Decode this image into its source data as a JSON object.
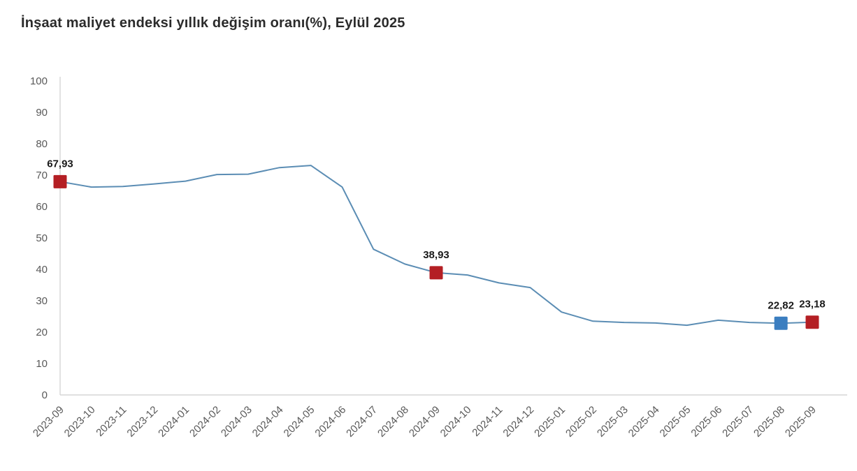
{
  "title": "İnşaat maliyet endeksi yıllık değişim oranı(%), Eylül 2025",
  "colors": {
    "title_text": "#2b2b2b",
    "axis_line": "#d6d6d6",
    "tick_text": "#595959",
    "series_line": "#5b8db4",
    "marker_red": "#b41f24",
    "marker_blue": "#3b7ec0",
    "data_label_text": "#1a1a1a"
  },
  "chart_data": {
    "type": "line",
    "title": "İnşaat maliyet endeksi yıllık değişim oranı(%), Eylül 2025",
    "xlabel": "",
    "ylabel": "",
    "ylim": [
      0,
      100
    ],
    "yticks": [
      0,
      10,
      20,
      30,
      40,
      50,
      60,
      70,
      80,
      90,
      100
    ],
    "grid": false,
    "legend": "none",
    "decimal_separator": ",",
    "x": [
      "2023-09",
      "2023-10",
      "2023-11",
      "2023-12",
      "2024-01",
      "2024-02",
      "2024-03",
      "2024-04",
      "2024-05",
      "2024-06",
      "2024-07",
      "2024-08",
      "2024-09",
      "2024-10",
      "2024-11",
      "2024-12",
      "2025-01",
      "2025-02",
      "2025-03",
      "2025-04",
      "2025-05",
      "2025-06",
      "2025-07",
      "2025-08",
      "2025-09"
    ],
    "values": [
      67.93,
      66.2,
      66.4,
      67.2,
      68.1,
      70.2,
      70.3,
      72.4,
      73.1,
      66.2,
      46.4,
      41.7,
      38.93,
      38.2,
      35.7,
      34.2,
      26.4,
      23.5,
      23.1,
      22.9,
      22.2,
      23.8,
      23.1,
      22.82,
      23.18
    ],
    "annotations": [
      {
        "x": "2023-09",
        "value": 67.93,
        "label": "67,93",
        "marker": "square",
        "marker_color": "#b41f24"
      },
      {
        "x": "2024-09",
        "value": 38.93,
        "label": "38,93",
        "marker": "square",
        "marker_color": "#b41f24"
      },
      {
        "x": "2025-08",
        "value": 22.82,
        "label": "22,82",
        "marker": "square",
        "marker_color": "#3b7ec0"
      },
      {
        "x": "2025-09",
        "value": 23.18,
        "label": "23,18",
        "marker": "square",
        "marker_color": "#b41f24"
      }
    ]
  }
}
